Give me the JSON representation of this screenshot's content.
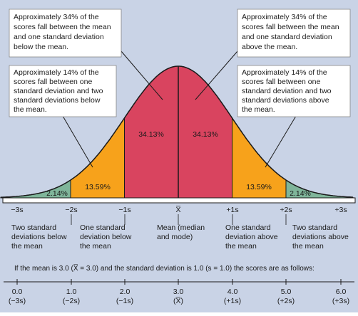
{
  "colors": {
    "background": "#c9d3e6",
    "center_fill": "#d9445f",
    "one_to_two_fill": "#f7a21b",
    "two_to_three_fill": "#7fb59a",
    "callout_fill": "#ffffff",
    "line": "#1a1a1a"
  },
  "callouts": {
    "top_left": [
      "Approximately 34% of the",
      "scores fall between the mean",
      "and one standard deviation",
      "below the mean."
    ],
    "top_right": [
      "Approximately 34% of the",
      "scores fall between the mean",
      "and one standard deviation",
      "above the mean."
    ],
    "mid_left": [
      "Approximately 14% of the",
      "scores fall between one",
      "standard deviation and two",
      "standard deviations below",
      "the mean."
    ],
    "mid_right": [
      "Approximately 14% of the",
      "scores fall between one",
      "standard deviation and two",
      "standard deviations above",
      "the mean."
    ]
  },
  "percentages": {
    "far_left": "2.14%",
    "left": "13.59%",
    "center_left": "34.13%",
    "center_right": "34.13%",
    "right": "13.59%",
    "far_right": "2.14%"
  },
  "axis_ticks": [
    "−3s",
    "−2s",
    "−1s",
    "X̅",
    "+1s",
    "+2s",
    "+3s"
  ],
  "descriptions": {
    "minus2": [
      "Two standard",
      "deviations below",
      "the mean"
    ],
    "minus1": [
      "One standard",
      "deviation below",
      "the mean"
    ],
    "mean": [
      "Mean (median",
      "and mode)"
    ],
    "plus1": [
      "One standard",
      "deviation above",
      "the mean"
    ],
    "plus2": [
      "Two standard",
      "deviations above",
      "the mean"
    ]
  },
  "example_sentence": "If the mean is 3.0 (X̅ = 3.0) and the standard deviation is 1.0 (s = 1.0) the scores are as follows:",
  "score_values": [
    "0.0",
    "1.0",
    "2.0",
    "3.0",
    "4.0",
    "5.0",
    "6.0"
  ],
  "score_deviations": [
    "(−3s)",
    "(−2s)",
    "(−1s)",
    "(X̅)",
    "(+1s)",
    "(+2s)",
    "(+3s)"
  ]
}
